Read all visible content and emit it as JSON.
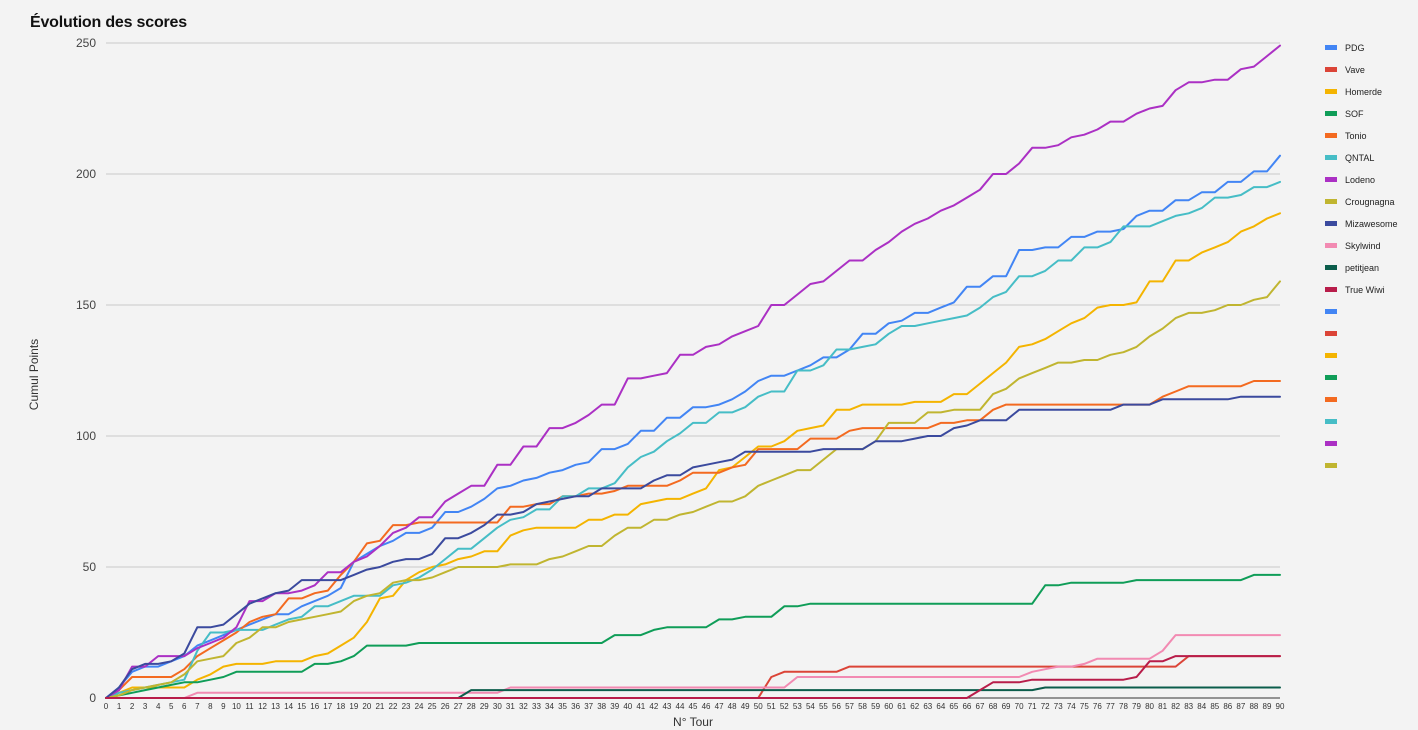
{
  "chart_data": {
    "type": "line",
    "title": "Évolution des scores",
    "xlabel": "N° Tour",
    "ylabel": "Cumul Points",
    "ylim": [
      0,
      250
    ],
    "yticks": [
      0,
      50,
      100,
      150,
      200,
      250
    ],
    "xlim": [
      0,
      90
    ],
    "grid": true,
    "legend_position": "right",
    "x": [
      0,
      1,
      2,
      3,
      4,
      5,
      6,
      7,
      8,
      9,
      10,
      11,
      12,
      13,
      14,
      15,
      16,
      17,
      18,
      19,
      20,
      21,
      22,
      23,
      24,
      25,
      26,
      27,
      28,
      29,
      30,
      31,
      32,
      33,
      34,
      35,
      36,
      37,
      38,
      39,
      40,
      41,
      42,
      43,
      44,
      45,
      46,
      47,
      48,
      49,
      50,
      51,
      52,
      53,
      54,
      55,
      56,
      57,
      58,
      59,
      60,
      61,
      62,
      63,
      64,
      65,
      66,
      67,
      68,
      69,
      70,
      71,
      72,
      73,
      74,
      75,
      76,
      77,
      78,
      79,
      80,
      81,
      82,
      83,
      84,
      85,
      86,
      87,
      88,
      89,
      90
    ],
    "series": [
      {
        "name": "PDG",
        "color": "#4285f4",
        "values": [
          0,
          4,
          10,
          12,
          12,
          14,
          16,
          20,
          22,
          24,
          26,
          28,
          30,
          32,
          32,
          35,
          37,
          39,
          42,
          52,
          55,
          58,
          60,
          63,
          63,
          65,
          71,
          71,
          73,
          76,
          80,
          81,
          83,
          84,
          86,
          87,
          89,
          90,
          95,
          95,
          97,
          102,
          102,
          107,
          107,
          111,
          111,
          112,
          114,
          117,
          121,
          123,
          123,
          125,
          127,
          130,
          130,
          133,
          139,
          139,
          143,
          144,
          147,
          147,
          149,
          151,
          157,
          157,
          161,
          161,
          171,
          171,
          172,
          172,
          176,
          176,
          178,
          178,
          179,
          184,
          186,
          186,
          190,
          190,
          193,
          193,
          197,
          197,
          201,
          201,
          207
        ]
      },
      {
        "name": "Vave",
        "color": "#db4437",
        "values": [
          0,
          0,
          0,
          0,
          0,
          0,
          0,
          0,
          0,
          0,
          0,
          0,
          0,
          0,
          0,
          0,
          0,
          0,
          0,
          0,
          0,
          0,
          0,
          0,
          0,
          0,
          0,
          0,
          0,
          0,
          0,
          0,
          0,
          0,
          0,
          0,
          0,
          0,
          0,
          0,
          0,
          0,
          0,
          0,
          0,
          0,
          0,
          0,
          0,
          0,
          0,
          8,
          10,
          10,
          10,
          10,
          10,
          12,
          12,
          12,
          12,
          12,
          12,
          12,
          12,
          12,
          12,
          12,
          12,
          12,
          12,
          12,
          12,
          12,
          12,
          12,
          12,
          12,
          12,
          12,
          12,
          12,
          12,
          16,
          16,
          16,
          16,
          16,
          16,
          16,
          16
        ]
      },
      {
        "name": "Homerde",
        "color": "#f4b400",
        "values": [
          0,
          2,
          4,
          4,
          4,
          4,
          4,
          7,
          9,
          12,
          13,
          13,
          13,
          14,
          14,
          14,
          16,
          17,
          20,
          23,
          29,
          38,
          39,
          45,
          48,
          50,
          51,
          53,
          54,
          56,
          56,
          62,
          64,
          65,
          65,
          65,
          65,
          68,
          68,
          70,
          70,
          74,
          75,
          76,
          76,
          78,
          80,
          87,
          88,
          92,
          96,
          96,
          98,
          102,
          103,
          104,
          110,
          110,
          112,
          112,
          112,
          112,
          113,
          113,
          113,
          116,
          116,
          120,
          124,
          128,
          134,
          135,
          137,
          140,
          143,
          145,
          149,
          150,
          150,
          151,
          159,
          159,
          167,
          167,
          170,
          172,
          174,
          178,
          180,
          183,
          185
        ]
      },
      {
        "name": "SOF",
        "color": "#0f9d58",
        "values": [
          0,
          1,
          2,
          3,
          4,
          5,
          6,
          6,
          7,
          8,
          10,
          10,
          10,
          10,
          10,
          10,
          13,
          13,
          14,
          16,
          20,
          20,
          20,
          20,
          21,
          21,
          21,
          21,
          21,
          21,
          21,
          21,
          21,
          21,
          21,
          21,
          21,
          21,
          21,
          24,
          24,
          24,
          26,
          27,
          27,
          27,
          27,
          30,
          30,
          31,
          31,
          31,
          35,
          35,
          36,
          36,
          36,
          36,
          36,
          36,
          36,
          36,
          36,
          36,
          36,
          36,
          36,
          36,
          36,
          36,
          36,
          36,
          43,
          43,
          44,
          44,
          44,
          44,
          44,
          45,
          45,
          45,
          45,
          45,
          45,
          45,
          45,
          45,
          47,
          47,
          47
        ]
      },
      {
        "name": "Tonio",
        "color": "#f36a20",
        "values": [
          0,
          3,
          8,
          8,
          8,
          8,
          11,
          16,
          19,
          22,
          25,
          29,
          31,
          32,
          38,
          38,
          40,
          41,
          47,
          52,
          59,
          60,
          66,
          66,
          67,
          67,
          67,
          67,
          67,
          67,
          67,
          73,
          73,
          74,
          74,
          77,
          77,
          78,
          78,
          79,
          81,
          81,
          81,
          81,
          83,
          86,
          86,
          86,
          88,
          89,
          95,
          95,
          95,
          95,
          99,
          99,
          99,
          102,
          103,
          103,
          103,
          103,
          103,
          103,
          105,
          105,
          106,
          106,
          110,
          112,
          112,
          112,
          112,
          112,
          112,
          112,
          112,
          112,
          112,
          112,
          112,
          115,
          117,
          119,
          119,
          119,
          119,
          119,
          121,
          121,
          121
        ]
      },
      {
        "name": "QNTAL",
        "color": "#46bdc6",
        "values": [
          0,
          2,
          3,
          4,
          5,
          6,
          7,
          18,
          25,
          25,
          26,
          26,
          26,
          28,
          30,
          31,
          35,
          35,
          37,
          39,
          39,
          39,
          43,
          44,
          46,
          49,
          53,
          57,
          57,
          61,
          65,
          68,
          69,
          72,
          72,
          77,
          77,
          80,
          80,
          82,
          88,
          92,
          94,
          98,
          101,
          105,
          105,
          109,
          109,
          111,
          115,
          117,
          117,
          125,
          125,
          127,
          133,
          133,
          134,
          135,
          139,
          142,
          142,
          143,
          144,
          145,
          146,
          149,
          153,
          155,
          161,
          161,
          163,
          167,
          167,
          172,
          172,
          174,
          180,
          180,
          180,
          182,
          184,
          185,
          187,
          191,
          191,
          192,
          195,
          195,
          197
        ]
      },
      {
        "name": "Lodeno",
        "color": "#ab30c4",
        "values": [
          0,
          3,
          12,
          12,
          16,
          16,
          16,
          19,
          21,
          23,
          27,
          37,
          37,
          40,
          40,
          41,
          43,
          48,
          48,
          52,
          54,
          58,
          63,
          65,
          69,
          69,
          75,
          78,
          81,
          81,
          89,
          89,
          96,
          96,
          103,
          103,
          105,
          108,
          112,
          112,
          122,
          122,
          123,
          124,
          131,
          131,
          134,
          135,
          138,
          140,
          142,
          150,
          150,
          154,
          158,
          159,
          163,
          167,
          167,
          171,
          174,
          178,
          181,
          183,
          186,
          188,
          191,
          194,
          200,
          200,
          204,
          210,
          210,
          211,
          214,
          215,
          217,
          220,
          220,
          223,
          225,
          226,
          232,
          235,
          235,
          236,
          236,
          240,
          241,
          245,
          249
        ]
      },
      {
        "name": "Crougnagna",
        "color": "#c0b530",
        "values": [
          0,
          1,
          3,
          4,
          5,
          6,
          9,
          14,
          15,
          16,
          21,
          23,
          27,
          27,
          29,
          30,
          31,
          32,
          33,
          37,
          39,
          40,
          44,
          45,
          45,
          46,
          48,
          50,
          50,
          50,
          50,
          51,
          51,
          51,
          53,
          54,
          56,
          58,
          58,
          62,
          65,
          65,
          68,
          68,
          70,
          71,
          73,
          75,
          75,
          77,
          81,
          83,
          85,
          87,
          87,
          91,
          95,
          95,
          95,
          98,
          105,
          105,
          105,
          109,
          109,
          110,
          110,
          110,
          116,
          118,
          122,
          124,
          126,
          128,
          128,
          129,
          129,
          131,
          132,
          134,
          138,
          141,
          145,
          147,
          147,
          148,
          150,
          150,
          152,
          153,
          159
        ]
      },
      {
        "name": "Mizawesome",
        "color": "#3b4a9e",
        "values": [
          0,
          4,
          11,
          13,
          13,
          14,
          17,
          27,
          27,
          28,
          32,
          36,
          38,
          40,
          41,
          45,
          45,
          45,
          45,
          47,
          49,
          50,
          52,
          53,
          53,
          55,
          61,
          61,
          63,
          66,
          70,
          70,
          71,
          74,
          75,
          76,
          77,
          77,
          80,
          80,
          80,
          80,
          83,
          85,
          85,
          88,
          89,
          90,
          91,
          94,
          94,
          94,
          94,
          94,
          94,
          95,
          95,
          95,
          95,
          98,
          98,
          98,
          99,
          100,
          100,
          103,
          104,
          106,
          106,
          106,
          110,
          110,
          110,
          110,
          110,
          110,
          110,
          110,
          112,
          112,
          112,
          114,
          114,
          114,
          114,
          114,
          114,
          115,
          115,
          115,
          115
        ]
      },
      {
        "name": "Skylwind",
        "color": "#f28ab2",
        "values": [
          0,
          0,
          0,
          0,
          0,
          0,
          0,
          2,
          2,
          2,
          2,
          2,
          2,
          2,
          2,
          2,
          2,
          2,
          2,
          2,
          2,
          2,
          2,
          2,
          2,
          2,
          2,
          2,
          2,
          2,
          2,
          4,
          4,
          4,
          4,
          4,
          4,
          4,
          4,
          4,
          4,
          4,
          4,
          4,
          4,
          4,
          4,
          4,
          4,
          4,
          4,
          4,
          4,
          8,
          8,
          8,
          8,
          8,
          8,
          8,
          8,
          8,
          8,
          8,
          8,
          8,
          8,
          8,
          8,
          8,
          8,
          10,
          11,
          12,
          12,
          13,
          15,
          15,
          15,
          15,
          15,
          18,
          24,
          24,
          24,
          24,
          24,
          24,
          24,
          24,
          24
        ]
      },
      {
        "name": "petitjean",
        "color": "#0b5d4b",
        "values": [
          0,
          0,
          0,
          0,
          0,
          0,
          0,
          0,
          0,
          0,
          0,
          0,
          0,
          0,
          0,
          0,
          0,
          0,
          0,
          0,
          0,
          0,
          0,
          0,
          0,
          0,
          0,
          0,
          3,
          3,
          3,
          3,
          3,
          3,
          3,
          3,
          3,
          3,
          3,
          3,
          3,
          3,
          3,
          3,
          3,
          3,
          3,
          3,
          3,
          3,
          3,
          3,
          3,
          3,
          3,
          3,
          3,
          3,
          3,
          3,
          3,
          3,
          3,
          3,
          3,
          3,
          3,
          3,
          3,
          3,
          3,
          3,
          4,
          4,
          4,
          4,
          4,
          4,
          4,
          4,
          4,
          4,
          4,
          4,
          4,
          4,
          4,
          4,
          4,
          4,
          4
        ]
      },
      {
        "name": "True Wiwi",
        "color": "#b81d4a",
        "values": [
          0,
          0,
          0,
          0,
          0,
          0,
          0,
          0,
          0,
          0,
          0,
          0,
          0,
          0,
          0,
          0,
          0,
          0,
          0,
          0,
          0,
          0,
          0,
          0,
          0,
          0,
          0,
          0,
          0,
          0,
          0,
          0,
          0,
          0,
          0,
          0,
          0,
          0,
          0,
          0,
          0,
          0,
          0,
          0,
          0,
          0,
          0,
          0,
          0,
          0,
          0,
          0,
          0,
          0,
          0,
          0,
          0,
          0,
          0,
          0,
          0,
          0,
          0,
          0,
          0,
          0,
          0,
          3,
          6,
          6,
          6,
          7,
          7,
          7,
          7,
          7,
          7,
          7,
          7,
          8,
          14,
          14,
          16,
          16,
          16,
          16,
          16,
          16,
          16,
          16,
          16
        ]
      }
    ],
    "legend_extra_colors": [
      "#4285f4",
      "#db4437",
      "#f4b400",
      "#0f9d58",
      "#f36a20",
      "#46bdc6",
      "#ab30c4",
      "#c0b530"
    ]
  }
}
